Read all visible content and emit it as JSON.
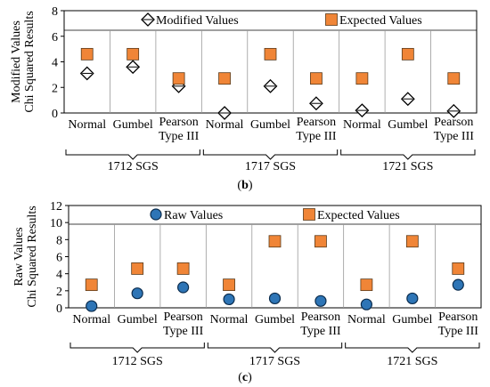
{
  "chart_data": [
    {
      "panel": "(b)",
      "type": "scatter",
      "ylabel": [
        "Modified Values",
        "Chi Squared Results"
      ],
      "ylim": [
        0,
        8
      ],
      "yticks": [
        0,
        2,
        4,
        6,
        8
      ],
      "categories": [
        "Normal",
        "Gumbel",
        "Pearson Type III",
        "Normal",
        "Gumbel",
        "Pearson Type III",
        "Normal",
        "Gumbel",
        "Pearson Type III"
      ],
      "groups": [
        "1712 SGS",
        "1717 SGS",
        "1721 SGS"
      ],
      "legend_position": "top",
      "series": [
        {
          "name": "Modified Values",
          "marker": "diamond",
          "color": "#ffffff",
          "values": [
            3.1,
            3.6,
            2.1,
            0.0,
            2.1,
            0.75,
            0.2,
            1.1,
            0.15
          ]
        },
        {
          "name": "Expected Values",
          "marker": "square",
          "color": "#F08537",
          "values": [
            4.6,
            4.6,
            2.7,
            2.7,
            4.6,
            2.7,
            2.7,
            4.6,
            2.7
          ]
        }
      ]
    },
    {
      "panel": "(c)",
      "type": "scatter",
      "ylabel": [
        "Raw Values",
        "Chi Squared Results"
      ],
      "ylim": [
        0,
        12
      ],
      "yticks": [
        0,
        2,
        4,
        6,
        8,
        10,
        12
      ],
      "categories": [
        "Normal",
        "Gumbel",
        "Pearson Type III",
        "Normal",
        "Gumbel",
        "Pearson Type III",
        "Normal",
        "Gumbel",
        "Pearson Type III"
      ],
      "groups": [
        "1712 SGS",
        "1717 SGS",
        "1721 SGS"
      ],
      "legend_position": "top",
      "series": [
        {
          "name": "Raw Values",
          "marker": "circle",
          "color": "#2E75B6",
          "values": [
            0.2,
            1.7,
            2.4,
            1.0,
            1.1,
            0.8,
            0.4,
            1.1,
            2.7
          ]
        },
        {
          "name": "Expected Values",
          "marker": "square",
          "color": "#F08537",
          "values": [
            2.7,
            4.6,
            4.6,
            2.7,
            7.8,
            7.8,
            2.7,
            7.8,
            4.6
          ]
        }
      ]
    }
  ]
}
